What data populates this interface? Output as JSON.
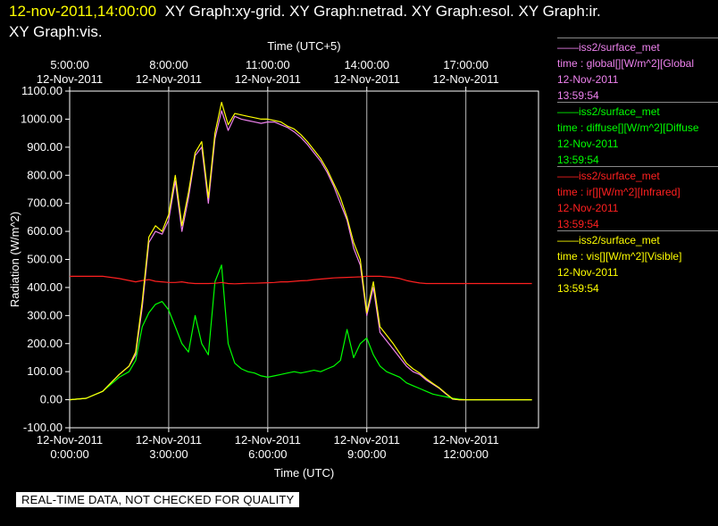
{
  "header": {
    "timestamp": "12-nov-2011,14:00:00",
    "graphs_line1": "XY Graph:xy-grid.  XY Graph:netrad.  XY Graph:esol.  XY Graph:ir.",
    "graphs_line2": "XY Graph:vis."
  },
  "legend": [
    {
      "source": "——iss2/surface_met",
      "var": "time : global[][W/m^2][Global",
      "date": "12-Nov-2011",
      "time": "13:59:54",
      "color": "#ee82ee"
    },
    {
      "source": "——iss2/surface_met",
      "var": "time : diffuse[][W/m^2][Diffuse",
      "date": "12-Nov-2011",
      "time": "13:59:54",
      "color": "#00ff00"
    },
    {
      "source": "——iss2/surface_met",
      "var": "time : ir[][W/m^2][Infrared]",
      "date": "12-Nov-2011",
      "time": "13:59:54",
      "color": "#ff2020"
    },
    {
      "source": "——iss2/surface_met",
      "var": "time : vis[][W/m^2][Visible]",
      "date": "12-Nov-2011",
      "time": "13:59:54",
      "color": "#ffff00"
    }
  ],
  "note": "REAL-TIME DATA, NOT CHECKED FOR QUALITY",
  "chart_data": {
    "type": "line",
    "title": "",
    "xlabel": "Time (UTC)",
    "x2label": "Time (UTC+5)",
    "ylabel": "Radiation (W/m^2)",
    "xlim": [
      0,
      14.2
    ],
    "ylim": [
      -100,
      1100
    ],
    "yticks": [
      "1100.00",
      "1000.00",
      "900.00",
      "800.00",
      "700.00",
      "600.00",
      "500.00",
      "400.00",
      "300.00",
      "200.00",
      "100.00",
      "0.00",
      "-100.00"
    ],
    "xticks": [
      {
        "x": 0,
        "date": "12-Nov-2011",
        "time": "0:00:00"
      },
      {
        "x": 3,
        "date": "12-Nov-2011",
        "time": "3:00:00"
      },
      {
        "x": 6,
        "date": "12-Nov-2011",
        "time": "6:00:00"
      },
      {
        "x": 9,
        "date": "12-Nov-2011",
        "time": "9:00:00"
      },
      {
        "x": 12,
        "date": "12-Nov-2011",
        "time": "12:00:00"
      }
    ],
    "x2ticks": [
      {
        "x": 0,
        "time": "5:00:00",
        "date": "12-Nov-2011"
      },
      {
        "x": 3,
        "time": "8:00:00",
        "date": "12-Nov-2011"
      },
      {
        "x": 6,
        "time": "11:00:00",
        "date": "12-Nov-2011"
      },
      {
        "x": 9,
        "time": "14:00:00",
        "date": "12-Nov-2011"
      },
      {
        "x": 12,
        "time": "17:00:00",
        "date": "12-Nov-2011"
      }
    ],
    "grid": "vertical",
    "x": [
      0,
      0.5,
      1,
      1.5,
      1.8,
      2.0,
      2.2,
      2.4,
      2.6,
      2.8,
      3.0,
      3.2,
      3.4,
      3.6,
      3.8,
      4.0,
      4.2,
      4.4,
      4.6,
      4.8,
      5.0,
      5.2,
      5.4,
      5.6,
      5.8,
      6.0,
      6.2,
      6.4,
      6.6,
      6.8,
      7.0,
      7.2,
      7.4,
      7.6,
      7.8,
      8.0,
      8.2,
      8.4,
      8.6,
      8.8,
      9.0,
      9.2,
      9.4,
      9.6,
      9.8,
      10.0,
      10.2,
      10.4,
      10.6,
      10.8,
      11.0,
      11.2,
      11.4,
      11.6,
      11.8,
      12.0,
      12.2,
      12.5,
      13,
      13.5,
      14
    ],
    "series": [
      {
        "name": "global",
        "color": "#ee82ee",
        "values": [
          0,
          5,
          30,
          90,
          120,
          160,
          330,
          560,
          600,
          590,
          640,
          780,
          600,
          720,
          870,
          900,
          700,
          930,
          1030,
          960,
          1010,
          1000,
          995,
          990,
          985,
          990,
          990,
          980,
          970,
          955,
          935,
          910,
          880,
          850,
          810,
          760,
          700,
          640,
          540,
          480,
          300,
          400,
          240,
          210,
          180,
          150,
          120,
          100,
          90,
          70,
          55,
          40,
          20,
          2,
          0,
          0,
          0,
          0,
          0,
          0,
          0
        ]
      },
      {
        "name": "diffuse",
        "color": "#00ff00",
        "values": [
          0,
          5,
          30,
          80,
          100,
          140,
          260,
          310,
          340,
          350,
          320,
          260,
          200,
          170,
          300,
          200,
          160,
          420,
          480,
          200,
          130,
          110,
          100,
          95,
          85,
          80,
          85,
          90,
          95,
          100,
          95,
          100,
          105,
          100,
          110,
          120,
          140,
          250,
          150,
          200,
          220,
          160,
          120,
          100,
          90,
          80,
          60,
          50,
          40,
          30,
          20,
          15,
          10,
          5,
          2,
          0,
          0,
          0,
          0,
          0,
          0
        ]
      },
      {
        "name": "ir",
        "color": "#ff2020",
        "values": [
          440,
          440,
          440,
          432,
          425,
          420,
          425,
          428,
          422,
          420,
          418,
          418,
          420,
          416,
          414,
          414,
          414,
          415,
          418,
          414,
          413,
          414,
          415,
          415,
          416,
          417,
          418,
          420,
          420,
          422,
          424,
          425,
          428,
          430,
          432,
          434,
          435,
          436,
          437,
          438,
          440,
          440,
          440,
          438,
          436,
          432,
          425,
          420,
          416,
          414,
          414,
          414,
          414,
          414,
          414,
          414,
          414,
          414,
          414,
          414,
          414
        ]
      },
      {
        "name": "vis",
        "color": "#ffff00",
        "values": [
          0,
          5,
          30,
          90,
          120,
          170,
          350,
          580,
          620,
          600,
          660,
          800,
          620,
          740,
          880,
          920,
          720,
          950,
          1060,
          980,
          1020,
          1015,
          1010,
          1005,
          1000,
          1000,
          995,
          990,
          975,
          965,
          945,
          920,
          890,
          860,
          820,
          770,
          720,
          650,
          560,
          500,
          310,
          420,
          260,
          230,
          200,
          165,
          130,
          110,
          95,
          75,
          58,
          42,
          22,
          3,
          0,
          0,
          0,
          0,
          0,
          0,
          0
        ]
      }
    ]
  }
}
